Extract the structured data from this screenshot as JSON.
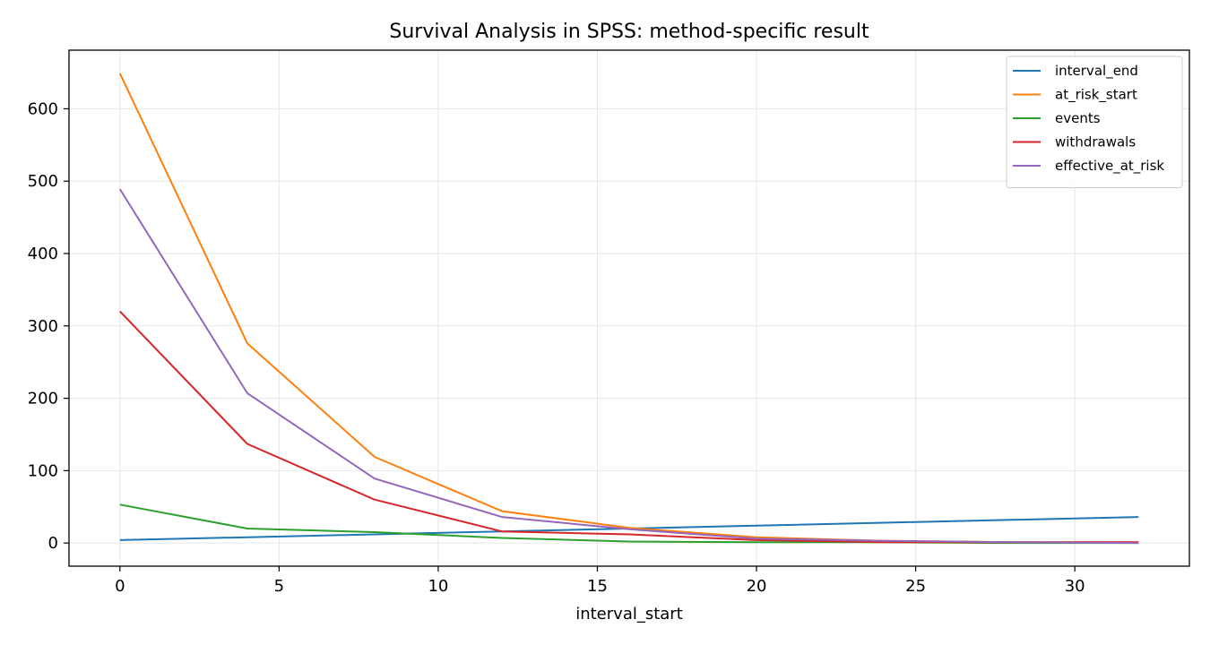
{
  "chart_data": {
    "type": "line",
    "title": "Survival Analysis in SPSS: method-specific result",
    "xlabel": "interval_start",
    "ylabel": "",
    "x": [
      0,
      4,
      8,
      12,
      16,
      20,
      24,
      28,
      32
    ],
    "xlim": [
      -1.6,
      33.6
    ],
    "ylim": [
      -32,
      681
    ],
    "xticks": [
      0,
      5,
      10,
      15,
      20,
      25,
      30
    ],
    "yticks": [
      0,
      100,
      200,
      300,
      400,
      500,
      600
    ],
    "grid": true,
    "legend_position": "top-right",
    "series": [
      {
        "name": "interval_end",
        "color": "#1f77b4",
        "values": [
          4,
          8,
          12,
          16,
          20,
          24,
          28,
          32,
          36
        ]
      },
      {
        "name": "at_risk_start",
        "color": "#ff7f0e",
        "values": [
          649,
          276,
          119,
          44,
          21,
          8,
          3,
          1,
          1
        ]
      },
      {
        "name": "events",
        "color": "#2ca02c",
        "values": [
          53,
          20,
          15,
          7,
          2,
          1,
          1,
          0,
          0
        ]
      },
      {
        "name": "withdrawals",
        "color": "#d62728",
        "values": [
          320,
          137,
          60,
          16,
          12,
          4,
          1,
          1,
          1
        ]
      },
      {
        "name": "effective_at_risk",
        "color": "#9467bd",
        "values": [
          489,
          207,
          89,
          36,
          19,
          6,
          3,
          1,
          0
        ]
      }
    ]
  }
}
